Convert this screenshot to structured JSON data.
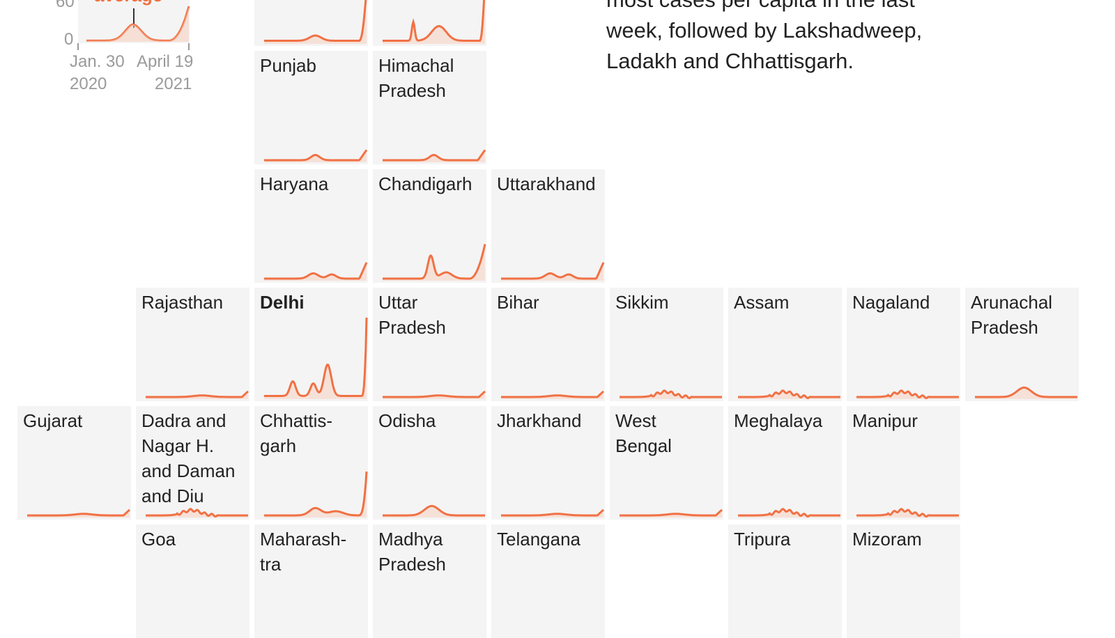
{
  "colors": {
    "line": "#f07144",
    "fill": "#f8c9b6",
    "tile": "#f4f4f4",
    "axis": "#9a9a9a"
  },
  "legend": {
    "y_tick_top": "60",
    "y_tick_zero": "0",
    "average_label": "average",
    "x_start_label": "Jan. 30",
    "x_start_year": "2020",
    "x_end_label": "April 19",
    "x_end_year": "2021"
  },
  "note": {
    "lines": [
      "most cases per capita in the last",
      "week, followed by Lakshadweep,",
      "Ladakh and Chhattisgarh."
    ]
  },
  "chart_data": {
    "type": "line",
    "layout": "tile-grid small multiples",
    "x_range": [
      "2020-01-30",
      "2021-04-19"
    ],
    "legend_y_ticks": [
      0,
      60
    ],
    "states": [
      {
        "name": "Punjab",
        "shape": "low",
        "bold": false
      },
      {
        "name": "Himachal\nPradesh",
        "shape": "low",
        "bold": false
      },
      {
        "name": "Haryana",
        "shape": "low-double",
        "bold": false
      },
      {
        "name": "Chandigarh",
        "shape": "chandigarh",
        "bold": false
      },
      {
        "name": "Uttarakhand",
        "shape": "low-double",
        "bold": false
      },
      {
        "name": "Rajasthan",
        "shape": "flat",
        "bold": false
      },
      {
        "name": "Delhi",
        "shape": "delhi",
        "bold": true
      },
      {
        "name": "Uttar\nPradesh",
        "shape": "flat",
        "bold": false
      },
      {
        "name": "Bihar",
        "shape": "flat",
        "bold": false
      },
      {
        "name": "Sikkim",
        "shape": "wiggle",
        "bold": false
      },
      {
        "name": "Assam",
        "shape": "wiggle",
        "bold": false
      },
      {
        "name": "Nagaland",
        "shape": "wiggle",
        "bold": false
      },
      {
        "name": "Arunachal\nPradesh",
        "shape": "bump",
        "bold": false
      },
      {
        "name": "Gujarat",
        "shape": "flat",
        "bold": false
      },
      {
        "name": "Dadra and\nNagar H.\nand Daman\nand Diu",
        "shape": "wiggle",
        "bold": false
      },
      {
        "name": "Chhattis-\ngarh",
        "shape": "chhattisgarh",
        "bold": false
      },
      {
        "name": "Odisha",
        "shape": "bump",
        "bold": false
      },
      {
        "name": "Jharkhand",
        "shape": "flat",
        "bold": false
      },
      {
        "name": "West\nBengal",
        "shape": "flat",
        "bold": false
      },
      {
        "name": "Meghalaya",
        "shape": "wiggle",
        "bold": false
      },
      {
        "name": "Manipur",
        "shape": "wiggle",
        "bold": false
      },
      {
        "name": "Goa",
        "shape": "none",
        "bold": false
      },
      {
        "name": "Maharash-\ntra",
        "shape": "none",
        "bold": false
      },
      {
        "name": "Madhya\nPradesh",
        "shape": "none",
        "bold": false
      },
      {
        "name": "Telangana",
        "shape": "none",
        "bold": false
      },
      {
        "name": "Tripura",
        "shape": "none",
        "bold": false
      },
      {
        "name": "Mizoram",
        "shape": "none",
        "bold": false
      },
      {
        "name": "",
        "shape": "partial-spike",
        "bold": false
      },
      {
        "name": "",
        "shape": "himachal-top",
        "bold": false
      }
    ]
  }
}
